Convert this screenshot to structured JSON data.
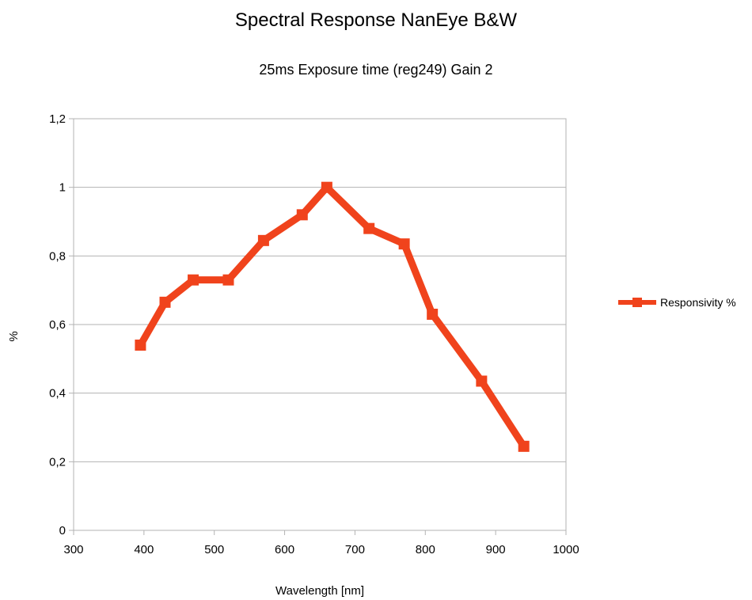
{
  "chart_data": {
    "type": "line",
    "title": "Spectral Response NanEye B&W",
    "subtitle": "25ms Exposure time (reg249) Gain 2",
    "xlabel": "Wavelength [nm]",
    "ylabel": "%",
    "xlim": [
      300,
      1000
    ],
    "ylim": [
      0,
      1.2
    ],
    "xticks": [
      300,
      400,
      500,
      600,
      700,
      800,
      900,
      1000
    ],
    "xtick_labels": [
      "300",
      "400",
      "500",
      "600",
      "700",
      "800",
      "900",
      "1000"
    ],
    "yticks": [
      0,
      0.2,
      0.4,
      0.6,
      0.8,
      1.0,
      1.2
    ],
    "ytick_labels": [
      "0",
      "0,2",
      "0,4",
      "0,6",
      "0,8",
      "1",
      "1,2"
    ],
    "grid": "horizontal",
    "legend_position": "right",
    "series": [
      {
        "name": "Responsivity %",
        "color": "#f0431c",
        "marker": "square",
        "x": [
          395,
          430,
          470,
          520,
          570,
          625,
          660,
          720,
          770,
          810,
          880,
          940
        ],
        "y": [
          0.54,
          0.665,
          0.73,
          0.73,
          0.845,
          0.92,
          1.0,
          0.88,
          0.835,
          0.63,
          0.435,
          0.245
        ]
      }
    ]
  }
}
